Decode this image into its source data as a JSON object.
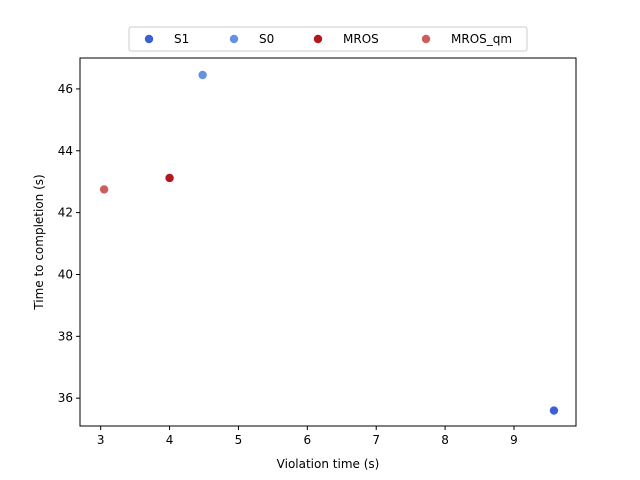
{
  "chart_data": {
    "type": "scatter",
    "xlabel": "Violation time (s)",
    "ylabel": "Time to completion (s)",
    "xlim": [
      2.7,
      9.9
    ],
    "ylim": [
      35.1,
      47.0
    ],
    "xticks": [
      3,
      4,
      5,
      6,
      7,
      8,
      9
    ],
    "yticks": [
      36,
      38,
      40,
      42,
      44,
      46
    ],
    "grid": false,
    "legend": {
      "placement": "top-center",
      "columns": 4
    },
    "series": [
      {
        "name": "S1",
        "color": "#3a5fd6",
        "points": [
          {
            "x": 9.58,
            "y": 35.6
          }
        ]
      },
      {
        "name": "S0",
        "color": "#6490e8",
        "points": [
          {
            "x": 4.48,
            "y": 46.45
          }
        ]
      },
      {
        "name": "MROS",
        "color": "#b2181b",
        "points": [
          {
            "x": 4.0,
            "y": 43.12
          }
        ]
      },
      {
        "name": "MROS_qm",
        "color": "#cd5c5c",
        "points": [
          {
            "x": 3.05,
            "y": 42.75
          }
        ]
      }
    ]
  }
}
